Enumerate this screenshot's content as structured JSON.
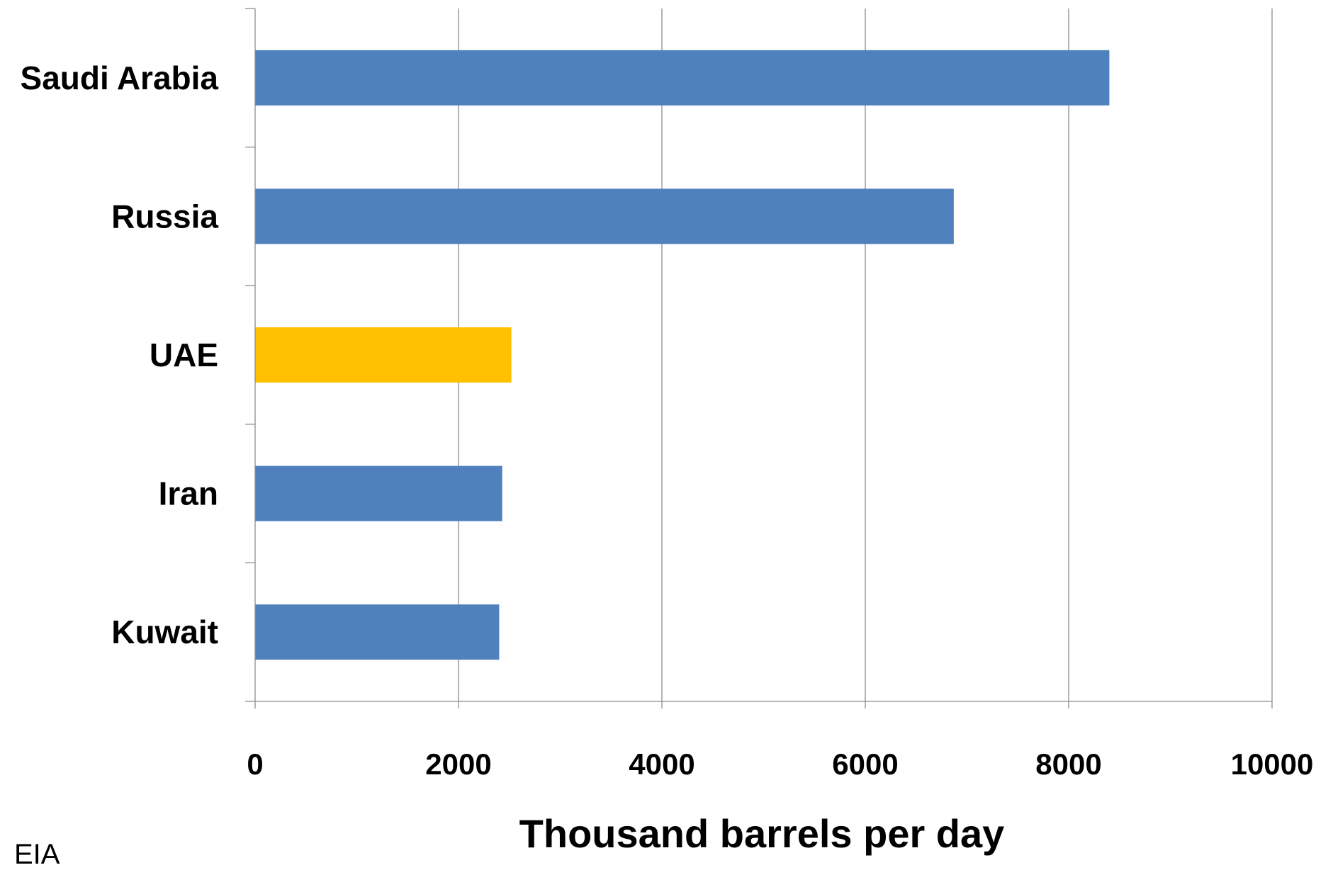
{
  "chart_data": {
    "type": "bar",
    "orientation": "horizontal",
    "categories": [
      "Saudi Arabia",
      "Russia",
      "UAE",
      "Iran",
      "Kuwait"
    ],
    "values": [
      8400,
      6870,
      2520,
      2430,
      2400
    ],
    "bar_colors": [
      "#4F81BD",
      "#4F81BD",
      "#FFC000",
      "#4F81BD",
      "#4F81BD"
    ],
    "xlabel": "Thousand barrels per day",
    "xlim": [
      0,
      10000
    ],
    "xticks": [
      "0",
      "2000",
      "4000",
      "6000",
      "8000",
      "10000"
    ],
    "grid": true,
    "legend": "none"
  },
  "source_note": "EIA"
}
